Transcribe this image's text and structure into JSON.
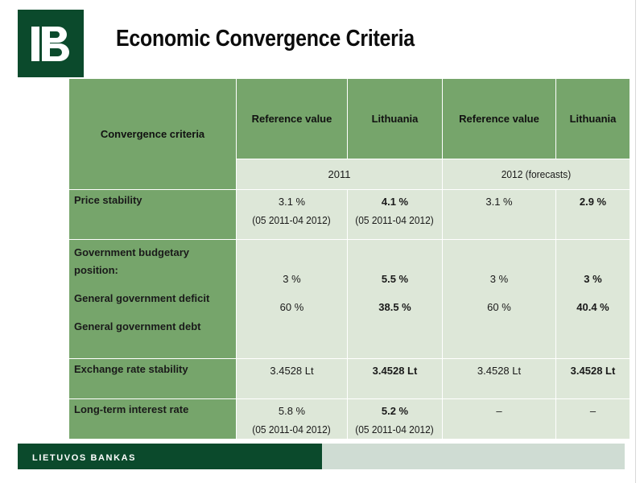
{
  "slide": {
    "title": "Economic Convergence Criteria"
  },
  "table": {
    "header": {
      "criteria": "Convergence criteria",
      "ref_2011": "Reference value",
      "lt_2011": "Lithuania",
      "ref_2012": "Reference value",
      "lt_2012": "Lithuania"
    },
    "years": {
      "y2011": "2011",
      "y2012": "2012 (forecasts)"
    },
    "rows": [
      {
        "label": "Price stability",
        "ref_2011": "3.1 %",
        "ref_2011_period": "(05 2011-04 2012)",
        "lt_2011": "4.1 %",
        "lt_2011_period": "(05 2011-04 2012)",
        "ref_2012": "3.1 %",
        "lt_2012": "2.9 %"
      },
      {
        "label": "Government budgetary position:",
        "sub1": "General government deficit",
        "sub2": "General government debt",
        "ref_2011_a": "3 %",
        "ref_2011_b": "60 %",
        "lt_2011_a": "5.5 %",
        "lt_2011_b": "38.5 %",
        "ref_2012_a": "3 %",
        "ref_2012_b": "60 %",
        "lt_2012_a": "3 %",
        "lt_2012_b": "40.4 %"
      },
      {
        "label": "Exchange rate  stability",
        "ref_2011": "3.4528 Lt",
        "lt_2011": "3.4528 Lt",
        "ref_2012": "3.4528 Lt",
        "lt_2012": "3.4528 Lt"
      },
      {
        "label": "Long-term interest rate",
        "ref_2011": "5.8 %",
        "ref_2011_period": "(05 2011-04 2012)",
        "lt_2011": "5.2 %",
        "lt_2011_period": "(05 2011-04 2012)",
        "ref_2012": "–",
        "lt_2012": "–"
      }
    ]
  },
  "footer": {
    "bank_name": "LIETUVOS BANKAS"
  },
  "colors": {
    "dark_green": "#0b4a2c",
    "table_green": "#76a56b",
    "table_light": "#dde7d8",
    "footer_light": "#cfdcd3"
  },
  "icons": {
    "logo": "lietuvos-bankas-monogram-logo"
  }
}
